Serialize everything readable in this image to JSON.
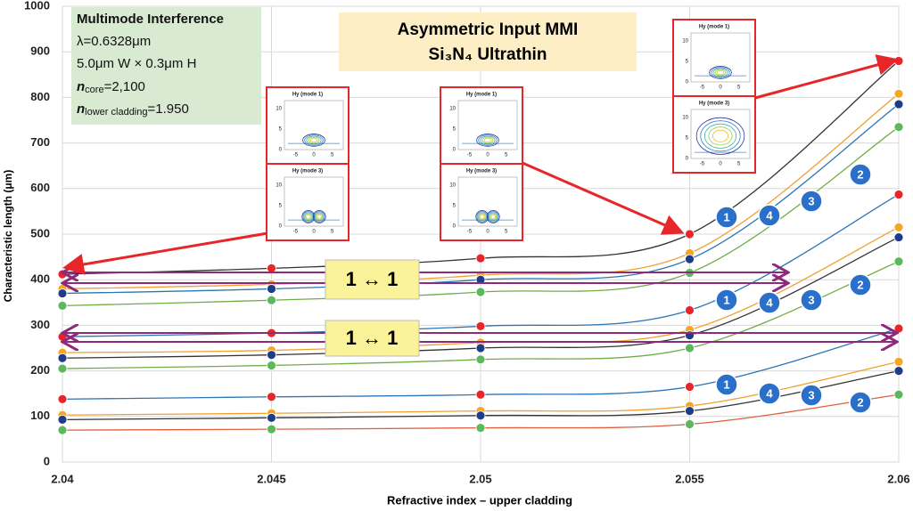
{
  "chart_data": {
    "type": "line",
    "x_label": "Refractive index – upper cladding",
    "y_label": "Characteristic length (μm)",
    "x": [
      2.04,
      2.045,
      2.05,
      2.055,
      2.06
    ],
    "xlim": [
      2.04,
      2.06
    ],
    "xticks": [
      2.04,
      2.045,
      2.05,
      2.055,
      2.06
    ],
    "ylim": [
      0,
      1000
    ],
    "yticks": [
      0,
      100,
      200,
      300,
      400,
      500,
      600,
      700,
      800,
      900,
      1000
    ],
    "grid": true,
    "series": [
      {
        "label": "1",
        "color": "#e8262a",
        "line_color": "#333333",
        "values": [
          412,
          425,
          447,
          500,
          880
        ]
      },
      {
        "label": "4",
        "color": "#f5a623",
        "line_color": "#f0a030",
        "values": [
          380,
          390,
          410,
          458,
          808
        ]
      },
      {
        "label": "3",
        "color": "#1f3c88",
        "line_color": "#2e75b6",
        "values": [
          370,
          380,
          400,
          445,
          785
        ]
      },
      {
        "label": "2",
        "color": "#5cb85c",
        "line_color": "#70ad47",
        "values": [
          343,
          355,
          373,
          415,
          735
        ]
      },
      {
        "label": "1",
        "color": "#e8262a",
        "line_color": "#2e75b6",
        "values": [
          275,
          283,
          298,
          333,
          587
        ]
      },
      {
        "label": "4",
        "color": "#f5a623",
        "line_color": "#f0a030",
        "values": [
          240,
          245,
          262,
          290,
          515
        ]
      },
      {
        "label": "3",
        "color": "#1f3c88",
        "line_color": "#333333",
        "values": [
          228,
          235,
          250,
          278,
          493
        ]
      },
      {
        "label": "2",
        "color": "#5cb85c",
        "line_color": "#70ad47",
        "values": [
          205,
          212,
          225,
          250,
          440
        ]
      },
      {
        "label": "1",
        "color": "#e8262a",
        "line_color": "#2e75b6",
        "values": [
          138,
          143,
          148,
          165,
          293
        ]
      },
      {
        "label": "4",
        "color": "#f5a623",
        "line_color": "#f0a030",
        "values": [
          103,
          107,
          112,
          123,
          220
        ]
      },
      {
        "label": "3",
        "color": "#1f3c88",
        "line_color": "#333333",
        "values": [
          93,
          97,
          102,
          112,
          200
        ]
      },
      {
        "label": "2",
        "color": "#5cb85c",
        "line_color": "#e06040",
        "values": [
          70,
          72,
          75,
          83,
          148
        ]
      }
    ],
    "title_lines": [
      "Asymmetric Input MMI",
      "Si₃N₄ Ultrathin"
    ],
    "info": {
      "heading": "Multimode Interference",
      "wavelength": "λ=0.6328μm",
      "size": "5.0μm W × 0.3μm H",
      "core": {
        "symbol": "n",
        "subscript": "core",
        "text": "=2,100"
      },
      "lower": {
        "symbol": "n",
        "subscript": "lower cladding",
        "text": "=1.950"
      }
    },
    "mapping_labels": [
      "1 ↔ 1",
      "1 ↔ 1"
    ],
    "insets": [
      {
        "panels": [
          {
            "title": "Hy (mode 1)",
            "xticks": [
              -5,
              0,
              5
            ],
            "yticks": [
              0,
              5,
              10
            ]
          },
          {
            "title": "Hy (mode 3)",
            "xticks": [
              -5,
              0,
              5
            ],
            "yticks": [
              0,
              5,
              10
            ]
          }
        ]
      },
      {
        "panels": [
          {
            "title": "Hy (mode 1)",
            "xticks": [
              -5,
              0,
              5
            ],
            "yticks": [
              0,
              5,
              10
            ]
          },
          {
            "title": "Hy (mode 3)",
            "xticks": [
              -5,
              0,
              5
            ],
            "yticks": [
              0,
              5,
              10
            ]
          }
        ]
      },
      {
        "panels": [
          {
            "title": "Hy (mode 1)",
            "xticks": [
              -5,
              0,
              5
            ],
            "yticks": [
              0,
              5,
              10
            ]
          },
          {
            "title": "Hy (mode 3)",
            "xticks": [
              -5,
              0,
              5
            ],
            "yticks": [
              0,
              5,
              10
            ]
          }
        ]
      }
    ]
  }
}
